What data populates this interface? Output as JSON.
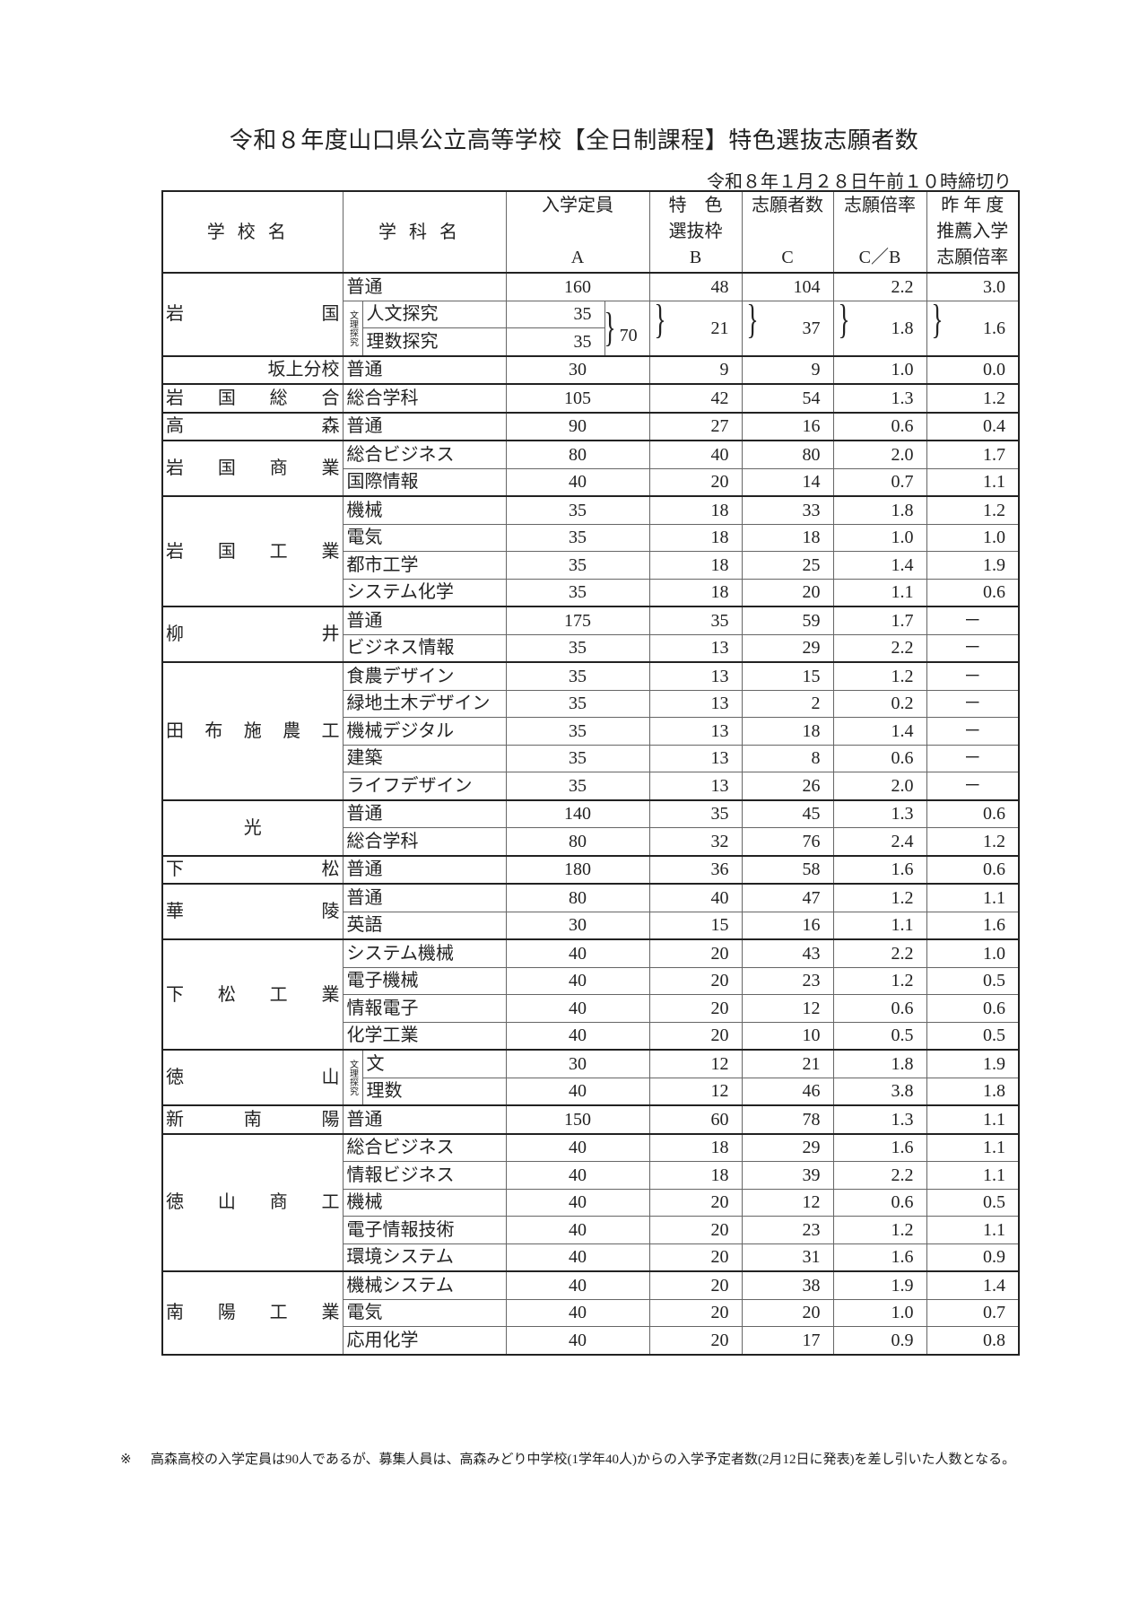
{
  "title": "令和８年度山口県公立高等学校【全日制課程】特色選抜志願者数",
  "deadline": "令和８年１月２８日午前１０時締切り",
  "headers": {
    "school": "学校名",
    "dept": "学科名",
    "capacity": [
      "入学定員",
      "",
      "A"
    ],
    "quota": [
      "特　色",
      "選抜枠",
      "B"
    ],
    "applicants": [
      "志願者数",
      "",
      "C"
    ],
    "ratio": [
      "志願倍率",
      "",
      "C／B"
    ],
    "prev": [
      "昨 年 度",
      "推薦入学",
      "志願倍率"
    ]
  },
  "bracket_glyph": "}",
  "schools": [
    {
      "name": "岩国",
      "rows": [
        {
          "dept": "普通",
          "a": "160",
          "b": "48",
          "c": "104",
          "r": "2.2",
          "p": "3.0"
        }
      ],
      "merged_group": {
        "label": "文理探究",
        "depts": [
          {
            "dept": "人文探究",
            "a": "35"
          },
          {
            "dept": "理数探究",
            "a": "35"
          }
        ],
        "a_total": "70",
        "b": "21",
        "c": "37",
        "r": "1.8",
        "p": "1.6"
      }
    },
    {
      "name": "坂上分校",
      "rows": [
        {
          "dept": "普通",
          "a": "30",
          "b": "9",
          "c": "9",
          "r": "1.0",
          "p": "0.0"
        }
      ]
    },
    {
      "name": "岩国総合",
      "rows": [
        {
          "dept": "総合学科",
          "a": "105",
          "b": "42",
          "c": "54",
          "r": "1.3",
          "p": "1.2"
        }
      ]
    },
    {
      "name": "高森",
      "rows": [
        {
          "dept": "普通",
          "a": "90",
          "b": "27",
          "c": "16",
          "r": "0.6",
          "p": "0.4"
        }
      ]
    },
    {
      "name": "岩国商業",
      "rows": [
        {
          "dept": "総合ビジネス",
          "a": "80",
          "b": "40",
          "c": "80",
          "r": "2.0",
          "p": "1.7"
        },
        {
          "dept": "国際情報",
          "a": "40",
          "b": "20",
          "c": "14",
          "r": "0.7",
          "p": "1.1"
        }
      ]
    },
    {
      "name": "岩国工業",
      "rows": [
        {
          "dept": "機械",
          "a": "35",
          "b": "18",
          "c": "33",
          "r": "1.8",
          "p": "1.2"
        },
        {
          "dept": "電気",
          "a": "35",
          "b": "18",
          "c": "18",
          "r": "1.0",
          "p": "1.0"
        },
        {
          "dept": "都市工学",
          "a": "35",
          "b": "18",
          "c": "25",
          "r": "1.4",
          "p": "1.9"
        },
        {
          "dept": "システム化学",
          "a": "35",
          "b": "18",
          "c": "20",
          "r": "1.1",
          "p": "0.6"
        }
      ]
    },
    {
      "name": "柳井",
      "rows": [
        {
          "dept": "普通",
          "a": "175",
          "b": "35",
          "c": "59",
          "r": "1.7",
          "p": "－"
        },
        {
          "dept": "ビジネス情報",
          "a": "35",
          "b": "13",
          "c": "29",
          "r": "2.2",
          "p": "－"
        }
      ]
    },
    {
      "name": "田布施農工",
      "rows": [
        {
          "dept": "食農デザイン",
          "a": "35",
          "b": "13",
          "c": "15",
          "r": "1.2",
          "p": "－"
        },
        {
          "dept": "緑地土木デザイン",
          "a": "35",
          "b": "13",
          "c": "2",
          "r": "0.2",
          "p": "－"
        },
        {
          "dept": "機械デジタル",
          "a": "35",
          "b": "13",
          "c": "18",
          "r": "1.4",
          "p": "－"
        },
        {
          "dept": "建築",
          "a": "35",
          "b": "13",
          "c": "8",
          "r": "0.6",
          "p": "－"
        },
        {
          "dept": "ライフデザイン",
          "a": "35",
          "b": "13",
          "c": "26",
          "r": "2.0",
          "p": "－"
        }
      ]
    },
    {
      "name": "光",
      "rows": [
        {
          "dept": "普通",
          "a": "140",
          "b": "35",
          "c": "45",
          "r": "1.3",
          "p": "0.6"
        },
        {
          "dept": "総合学科",
          "a": "80",
          "b": "32",
          "c": "76",
          "r": "2.4",
          "p": "1.2"
        }
      ]
    },
    {
      "name": "下松",
      "rows": [
        {
          "dept": "普通",
          "a": "180",
          "b": "36",
          "c": "58",
          "r": "1.6",
          "p": "0.6"
        }
      ]
    },
    {
      "name": "華陵",
      "rows": [
        {
          "dept": "普通",
          "a": "80",
          "b": "40",
          "c": "47",
          "r": "1.2",
          "p": "1.1"
        },
        {
          "dept": "英語",
          "a": "30",
          "b": "15",
          "c": "16",
          "r": "1.1",
          "p": "1.6"
        }
      ]
    },
    {
      "name": "下松工業",
      "rows": [
        {
          "dept": "システム機械",
          "a": "40",
          "b": "20",
          "c": "43",
          "r": "2.2",
          "p": "1.0"
        },
        {
          "dept": "電子機械",
          "a": "40",
          "b": "20",
          "c": "23",
          "r": "1.2",
          "p": "0.5"
        },
        {
          "dept": "情報電子",
          "a": "40",
          "b": "20",
          "c": "12",
          "r": "0.6",
          "p": "0.6"
        },
        {
          "dept": "化学工業",
          "a": "40",
          "b": "20",
          "c": "10",
          "r": "0.5",
          "p": "0.5"
        }
      ]
    },
    {
      "name": "徳山",
      "label_group": "文理探究",
      "rows": [
        {
          "dept": "文",
          "a": "30",
          "b": "12",
          "c": "21",
          "r": "1.8",
          "p": "1.9"
        },
        {
          "dept": "理数",
          "a": "40",
          "b": "12",
          "c": "46",
          "r": "3.8",
          "p": "1.8"
        }
      ]
    },
    {
      "name": "新南陽",
      "rows": [
        {
          "dept": "普通",
          "a": "150",
          "b": "60",
          "c": "78",
          "r": "1.3",
          "p": "1.1"
        }
      ]
    },
    {
      "name": "徳山商工",
      "rows": [
        {
          "dept": "総合ビジネス",
          "a": "40",
          "b": "18",
          "c": "29",
          "r": "1.6",
          "p": "1.1"
        },
        {
          "dept": "情報ビジネス",
          "a": "40",
          "b": "18",
          "c": "39",
          "r": "2.2",
          "p": "1.1"
        },
        {
          "dept": "機械",
          "a": "40",
          "b": "20",
          "c": "12",
          "r": "0.6",
          "p": "0.5"
        },
        {
          "dept": "電子情報技術",
          "a": "40",
          "b": "20",
          "c": "23",
          "r": "1.2",
          "p": "1.1"
        },
        {
          "dept": "環境システム",
          "a": "40",
          "b": "20",
          "c": "31",
          "r": "1.6",
          "p": "0.9"
        }
      ]
    },
    {
      "name": "南陽工業",
      "rows": [
        {
          "dept": "機械システム",
          "a": "40",
          "b": "20",
          "c": "38",
          "r": "1.9",
          "p": "1.4"
        },
        {
          "dept": "電気",
          "a": "40",
          "b": "20",
          "c": "20",
          "r": "1.0",
          "p": "0.7"
        },
        {
          "dept": "応用化学",
          "a": "40",
          "b": "20",
          "c": "17",
          "r": "0.9",
          "p": "0.8"
        }
      ]
    }
  ],
  "note": {
    "mark": "※",
    "text": "高森高校の入学定員は90人であるが、募集人員は、高森みどり中学校(1学年40人)からの入学予定者数(2月12日に発表)を差し引いた人数となる。"
  }
}
